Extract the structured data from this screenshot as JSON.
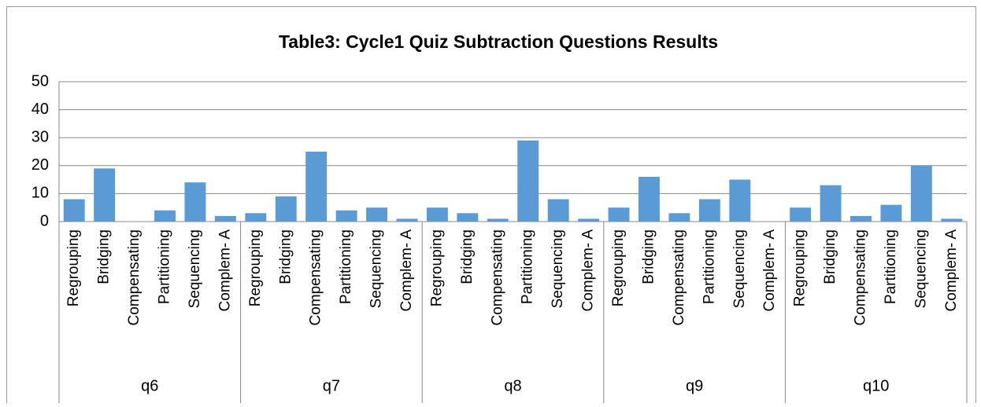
{
  "chart_data": {
    "type": "bar",
    "title": "Table3: Cycle1 Quiz Subtraction Questions Results",
    "color": "#5b9bd5",
    "groups": [
      {
        "name": "q6",
        "categories": [
          "Regrouping",
          "Bridging",
          "Compensating",
          "Partitioning",
          "Sequencing",
          "Complem- A"
        ],
        "values": [
          8,
          19,
          0,
          4,
          14,
          2
        ]
      },
      {
        "name": "q7",
        "categories": [
          "Regrouping",
          "Bridging",
          "Compensating",
          "Partitioning",
          "Sequencing",
          "Complem- A"
        ],
        "values": [
          3,
          9,
          25,
          4,
          5,
          1
        ]
      },
      {
        "name": "q8",
        "categories": [
          "Regrouping",
          "Bridging",
          "Compensating",
          "Partitioning",
          "Sequencing",
          "Complem- A"
        ],
        "values": [
          5,
          3,
          1,
          29,
          8,
          1
        ]
      },
      {
        "name": "q9",
        "categories": [
          "Regrouping",
          "Bridging",
          "Compensating",
          "Partitioning",
          "Sequencing",
          "Complem- A"
        ],
        "values": [
          5,
          16,
          3,
          8,
          15,
          0
        ]
      },
      {
        "name": "q10",
        "categories": [
          "Regrouping",
          "Bridging",
          "Compensating",
          "Partitioning",
          "Sequencing",
          "Complem- A"
        ],
        "values": [
          5,
          13,
          2,
          6,
          20,
          1
        ]
      }
    ],
    "ylim": [
      0,
      50
    ],
    "yticks": [
      0,
      10,
      20,
      30,
      40,
      50
    ],
    "grid": true
  }
}
